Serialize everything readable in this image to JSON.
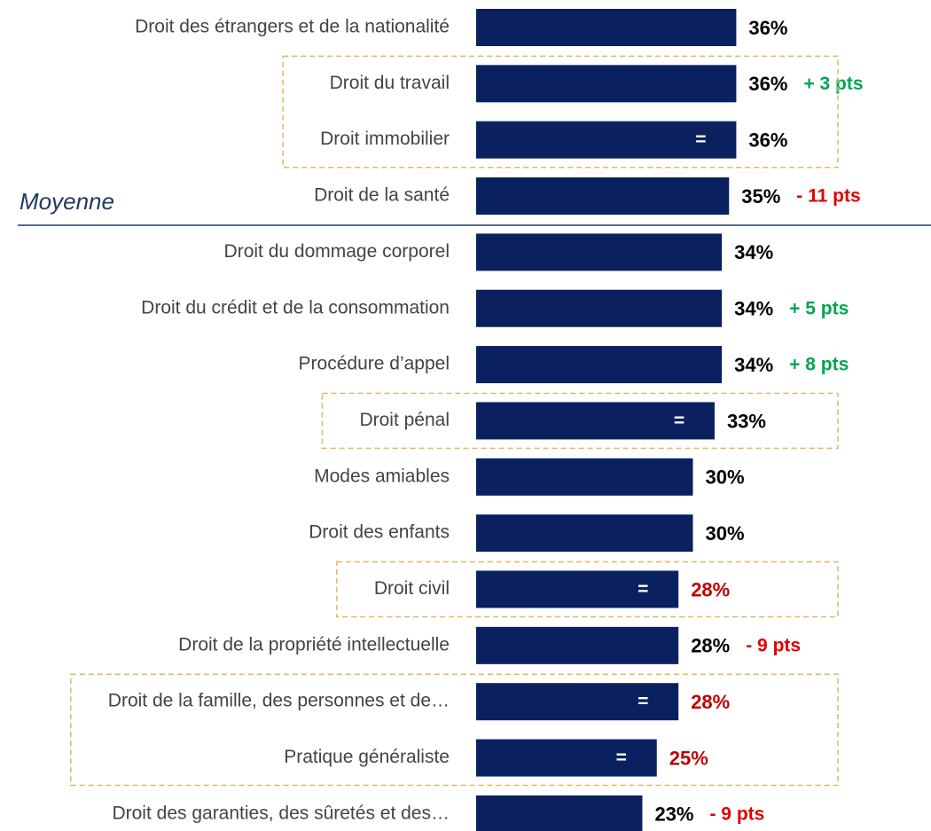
{
  "chart_data": {
    "type": "hbar",
    "annotation": "Moyenne",
    "categories": [
      "Droit des étrangers et de la nationalité",
      "Droit du travail",
      "Droit immobilier",
      "Droit de la santé",
      "Droit du dommage corporel",
      "Droit du crédit et de la consommation",
      "Procédure d’appel",
      "Droit pénal",
      "Modes amiables",
      "Droit des enfants",
      "Droit civil",
      "Droit de la propriété intellectuelle",
      "Droit de la famille, des personnes et de…",
      "Pratique généraliste",
      "Droit des garanties, des sûretés et des…"
    ],
    "values": [
      36,
      36,
      36,
      35,
      34,
      34,
      34,
      33,
      30,
      30,
      28,
      28,
      28,
      25,
      23
    ],
    "value_labels": [
      "36%",
      "36%",
      "36%",
      "35%",
      "34%",
      "34%",
      "34%",
      "33%",
      "30%",
      "30%",
      "28%",
      "28%",
      "28%",
      "25%",
      "23%"
    ],
    "value_label_colors": [
      "#000000",
      "#000000",
      "#000000",
      "#000000",
      "#000000",
      "#000000",
      "#000000",
      "#000000",
      "#000000",
      "#000000",
      "#c00000",
      "#000000",
      "#c00000",
      "#c00000",
      "#000000"
    ],
    "changes": [
      null,
      "+ 3 pts",
      "=",
      "- 11 pts",
      null,
      "+ 5 pts",
      "+ 8 pts",
      "=",
      null,
      null,
      "=",
      "- 9 pts",
      "=",
      "=",
      "- 9 pts"
    ],
    "change_colors": [
      null,
      "#00a651",
      "#ffffff",
      "#e00000",
      null,
      "#00a651",
      "#00a651",
      "#ffffff",
      null,
      null,
      "#ffffff",
      "#e00000",
      "#ffffff",
      "#ffffff",
      "#e00000"
    ],
    "highlighted": [
      false,
      true,
      true,
      false,
      false,
      false,
      false,
      true,
      false,
      false,
      true,
      false,
      true,
      true,
      false
    ],
    "color": "#0b215f"
  }
}
